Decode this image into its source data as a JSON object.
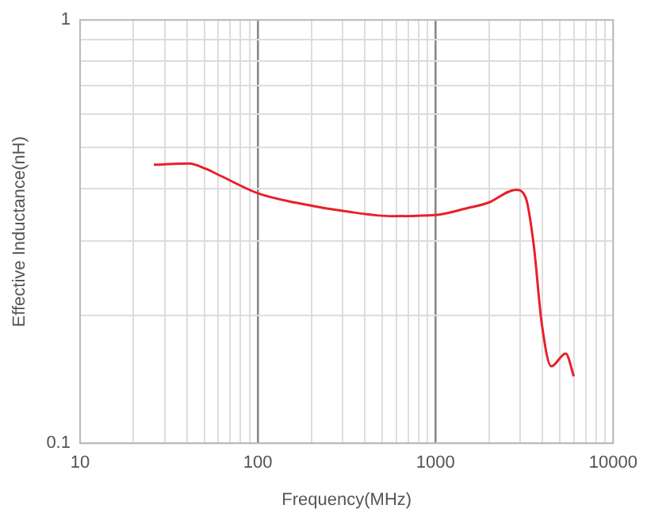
{
  "chart_data": {
    "type": "line",
    "xlabel": "Frequency(MHz)",
    "ylabel": "Effective Inductance(nH)",
    "log": "xy",
    "grid": true,
    "marker": "none",
    "line_style": "solid",
    "xlim": [
      10,
      10000
    ],
    "ylim": [
      0.1,
      1
    ],
    "xticks": [
      10,
      {
        "value": 20,
        "label": null
      },
      {
        "value": 30,
        "label": null
      },
      {
        "value": 40,
        "label": null
      },
      {
        "value": 50,
        "label": null
      },
      {
        "value": 60,
        "label": null
      },
      {
        "value": 70,
        "label": null
      },
      {
        "value": 80,
        "label": null
      },
      {
        "value": 90,
        "label": null
      },
      100,
      {
        "value": 200,
        "label": null
      },
      {
        "value": 300,
        "label": null
      },
      {
        "value": 400,
        "label": null
      },
      {
        "value": 500,
        "label": null
      },
      {
        "value": 600,
        "label": null
      },
      {
        "value": 700,
        "label": null
      },
      {
        "value": 800,
        "label": null
      },
      {
        "value": 900,
        "label": null
      },
      1000,
      {
        "value": 2000,
        "label": null
      },
      {
        "value": 3000,
        "label": null
      },
      {
        "value": 4000,
        "label": null
      },
      {
        "value": 5000,
        "label": null
      },
      {
        "value": 6000,
        "label": null
      },
      {
        "value": 7000,
        "label": null
      },
      {
        "value": 8000,
        "label": null
      },
      {
        "value": 9000,
        "label": null
      },
      10000
    ],
    "yticks": [
      0.1,
      {
        "value": 0.2,
        "label": null
      },
      {
        "value": 0.3,
        "label": null
      },
      {
        "value": 0.4,
        "label": null
      },
      {
        "value": 0.5,
        "label": null
      },
      {
        "value": 0.6,
        "label": null
      },
      {
        "value": 0.7,
        "label": null
      },
      {
        "value": 0.8,
        "label": null
      },
      {
        "value": 0.9,
        "label": null
      },
      1
    ],
    "series": [
      {
        "color": "#e8202a",
        "x": [
          26,
          41,
          51,
          62,
          101,
          164,
          328,
          571,
          994,
          1500,
          1980,
          2840,
          3220,
          3570,
          3960,
          4480,
          5400,
          6000
        ],
        "values": [
          0.455,
          0.458,
          0.445,
          0.428,
          0.389,
          0.37,
          0.352,
          0.344,
          0.346,
          0.359,
          0.37,
          0.397,
          0.38,
          0.294,
          0.192,
          0.152,
          0.163,
          0.144
        ]
      }
    ]
  }
}
